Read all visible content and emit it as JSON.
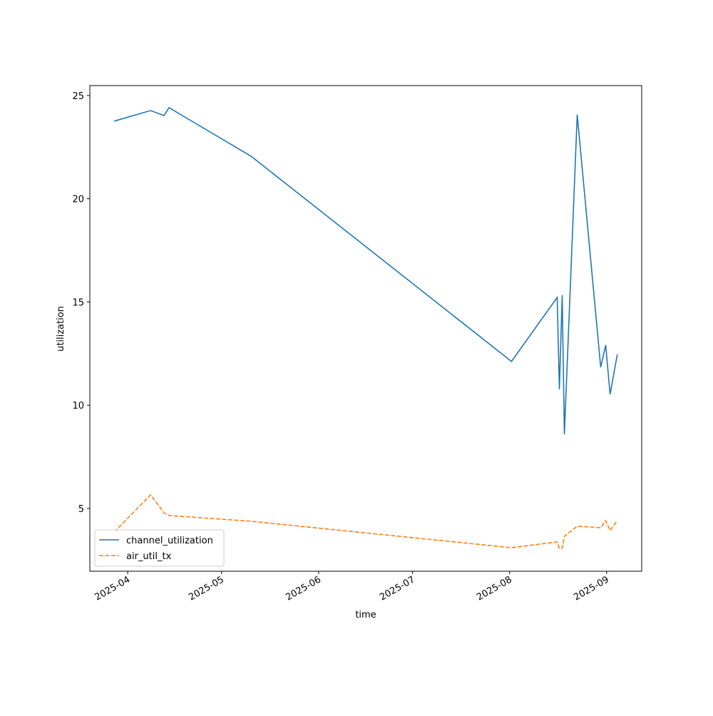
{
  "chart_data": {
    "type": "line",
    "xlabel": "time",
    "ylabel": "utilization",
    "x": [
      20174.7,
      20186.3,
      20190.6,
      20192.2,
      20218.4,
      20301.6,
      20316.2,
      20316.9,
      20317.8,
      20318.5,
      20322.6,
      20330.1,
      20331.7,
      20333.1,
      20335.4
    ],
    "series": [
      {
        "name": "channel_utilization",
        "color": "#1f77b4",
        "dash": "solid",
        "values": [
          23.76,
          24.27,
          24.03,
          24.41,
          22.06,
          12.12,
          15.22,
          10.77,
          15.33,
          8.59,
          24.07,
          11.84,
          12.91,
          10.53,
          12.46
        ]
      },
      {
        "name": "air_util_tx",
        "color": "#ff7f0e",
        "dash": "dashed",
        "values": [
          3.86,
          5.66,
          4.79,
          4.66,
          4.38,
          3.1,
          3.38,
          3.07,
          3.07,
          3.65,
          4.14,
          4.07,
          4.41,
          3.93,
          4.41
        ]
      }
    ],
    "xlim": [
      20166.9,
      20343.2
    ],
    "xticks": [
      {
        "value": 20179,
        "label": "2025-04"
      },
      {
        "value": 20209,
        "label": "2025-05"
      },
      {
        "value": 20240,
        "label": "2025-06"
      },
      {
        "value": 20270,
        "label": "2025-07"
      },
      {
        "value": 20301,
        "label": "2025-08"
      },
      {
        "value": 20332,
        "label": "2025-09"
      }
    ],
    "ylim": [
      1.96,
      25.48
    ],
    "yticks": [
      5,
      10,
      15,
      20,
      25
    ],
    "grid": false,
    "legend": "lower left"
  }
}
